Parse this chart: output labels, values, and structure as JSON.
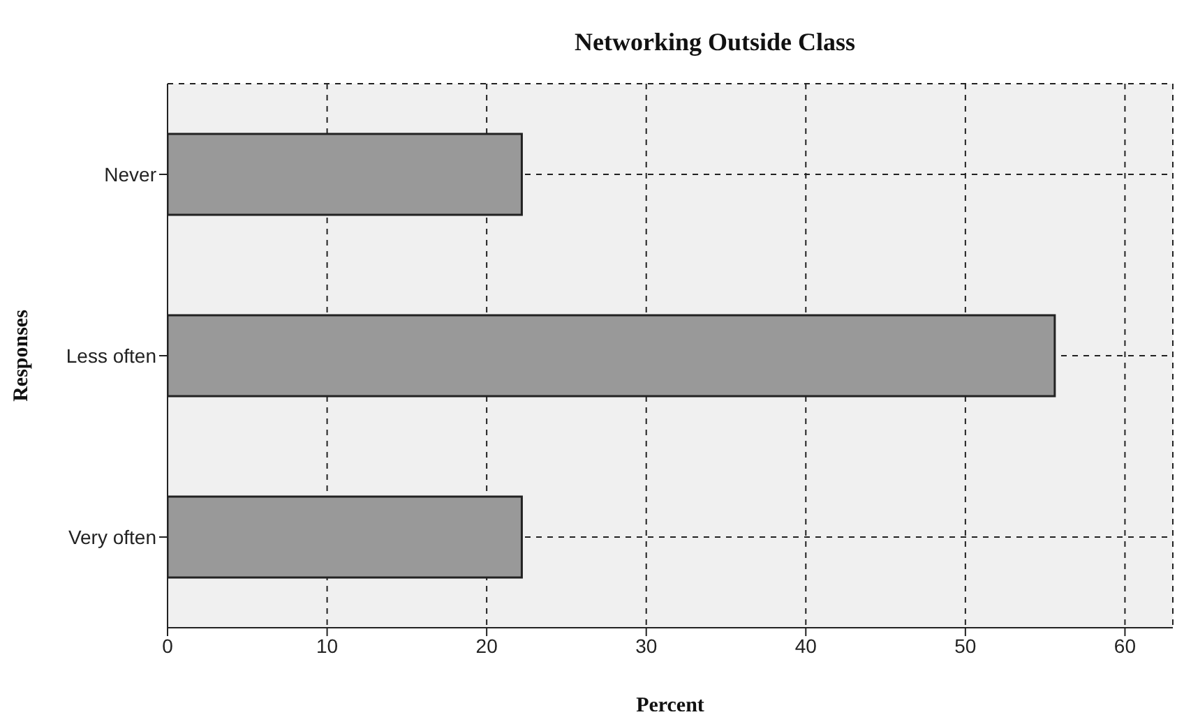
{
  "chart_data": {
    "type": "bar",
    "orientation": "horizontal",
    "title": "Networking Outside Class",
    "xlabel": "Percent",
    "ylabel": "Responses",
    "categories": [
      "Never",
      "Less often",
      "Very often"
    ],
    "values": [
      22.2,
      55.6,
      22.2
    ],
    "color": "#999999",
    "xlim": [
      0,
      63
    ],
    "xticks": [
      0,
      10,
      20,
      30,
      40,
      50,
      60
    ],
    "grid": true
  }
}
